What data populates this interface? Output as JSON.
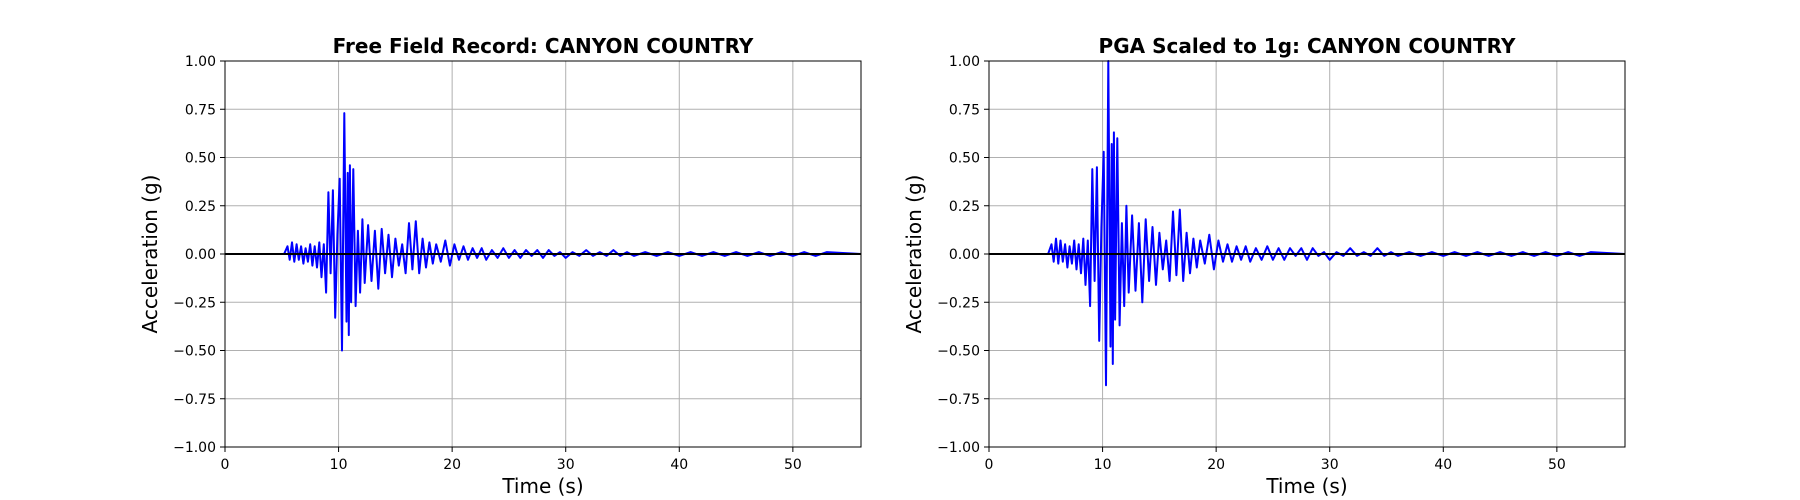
{
  "chart_data": [
    {
      "type": "line",
      "title": "Free Field Record: CANYON COUNTRY",
      "xlabel": "Time (s)",
      "ylabel": "Acceleration (g)",
      "xlim": [
        0,
        56
      ],
      "ylim": [
        -1.0,
        1.0
      ],
      "xticks": [
        "0",
        "10",
        "20",
        "30",
        "40",
        "50"
      ],
      "yticks": [
        "1.00",
        "0.75",
        "0.50",
        "0.25",
        "0.00",
        "−0.25",
        "−0.50",
        "−0.75",
        "−1.00"
      ],
      "grid": true,
      "series": [
        {
          "color": "#0000ff",
          "x": [
            0,
            5.2,
            5.5,
            5.7,
            5.9,
            6.1,
            6.3,
            6.5,
            6.7,
            6.9,
            7.1,
            7.3,
            7.5,
            7.7,
            7.9,
            8.1,
            8.3,
            8.5,
            8.7,
            8.9,
            9.1,
            9.3,
            9.5,
            9.7,
            9.9,
            10.1,
            10.3,
            10.5,
            10.7,
            10.8,
            10.9,
            11.0,
            11.1,
            11.3,
            11.5,
            11.7,
            11.9,
            12.1,
            12.3,
            12.6,
            12.9,
            13.2,
            13.5,
            13.8,
            14.1,
            14.4,
            14.7,
            15.0,
            15.3,
            15.6,
            15.9,
            16.2,
            16.5,
            16.8,
            17.1,
            17.4,
            17.7,
            18.0,
            18.3,
            18.6,
            19.0,
            19.4,
            19.8,
            20.2,
            20.6,
            21.0,
            21.4,
            21.8,
            22.2,
            22.6,
            23.0,
            23.5,
            24.0,
            24.5,
            25.0,
            25.5,
            26.0,
            26.5,
            27.0,
            27.5,
            28.0,
            28.5,
            29.0,
            29.5,
            30.0,
            30.6,
            31.2,
            31.8,
            32.4,
            33.0,
            33.6,
            34.2,
            34.8,
            35.4,
            36.0,
            37.0,
            38.0,
            39.0,
            40.0,
            41.0,
            42.0,
            43.0,
            44.0,
            45.0,
            46.0,
            47.0,
            48.0,
            49.0,
            50.0,
            51.0,
            52.0,
            53.0,
            56.0
          ],
          "y": [
            0,
            0,
            0.04,
            -0.03,
            0.06,
            -0.04,
            0.05,
            -0.03,
            0.04,
            -0.05,
            0.03,
            -0.04,
            0.05,
            -0.06,
            0.04,
            -0.07,
            0.06,
            -0.12,
            0.05,
            -0.2,
            0.32,
            -0.1,
            0.33,
            -0.33,
            0.1,
            0.39,
            -0.5,
            0.73,
            -0.35,
            0.42,
            -0.42,
            0.46,
            -0.25,
            0.44,
            -0.27,
            0.12,
            -0.2,
            0.18,
            -0.15,
            0.15,
            -0.14,
            0.12,
            -0.18,
            0.13,
            -0.1,
            0.1,
            -0.12,
            0.08,
            -0.06,
            0.05,
            -0.1,
            0.16,
            -0.08,
            0.17,
            -0.1,
            0.08,
            -0.07,
            0.06,
            -0.05,
            0.05,
            -0.04,
            0.07,
            -0.06,
            0.05,
            -0.03,
            0.04,
            -0.03,
            0.03,
            -0.02,
            0.03,
            -0.03,
            0.02,
            -0.02,
            0.03,
            -0.02,
            0.02,
            -0.02,
            0.02,
            -0.01,
            0.02,
            -0.02,
            0.02,
            -0.01,
            0.01,
            -0.02,
            0.01,
            -0.01,
            0.02,
            -0.01,
            0.01,
            -0.01,
            0.02,
            -0.01,
            0.01,
            -0.01,
            0.01,
            -0.01,
            0.01,
            -0.01,
            0.01,
            -0.01,
            0.01,
            -0.01,
            0.01,
            -0.01,
            0.01,
            -0.01,
            0.01,
            -0.01,
            0.01,
            -0.01,
            0.01,
            0
          ]
        }
      ]
    },
    {
      "type": "line",
      "title": "PGA Scaled to 1g: CANYON COUNTRY",
      "xlabel": "Time (s)",
      "ylabel": "Acceleration (g)",
      "xlim": [
        0,
        56
      ],
      "ylim": [
        -1.0,
        1.0
      ],
      "xticks": [
        "0",
        "10",
        "20",
        "30",
        "40",
        "50"
      ],
      "yticks": [
        "1.00",
        "0.75",
        "0.50",
        "0.25",
        "0.00",
        "−0.25",
        "−0.50",
        "−0.75",
        "−1.00"
      ],
      "grid": true,
      "series": [
        {
          "color": "#0000ff",
          "x": [
            0,
            5.2,
            5.5,
            5.7,
            5.9,
            6.1,
            6.3,
            6.5,
            6.7,
            6.9,
            7.1,
            7.3,
            7.5,
            7.7,
            7.9,
            8.1,
            8.3,
            8.5,
            8.7,
            8.9,
            9.1,
            9.3,
            9.5,
            9.7,
            9.9,
            10.1,
            10.3,
            10.5,
            10.7,
            10.8,
            10.9,
            11.0,
            11.1,
            11.3,
            11.5,
            11.7,
            11.9,
            12.1,
            12.3,
            12.6,
            12.9,
            13.2,
            13.5,
            13.8,
            14.1,
            14.4,
            14.7,
            15.0,
            15.3,
            15.6,
            15.9,
            16.2,
            16.5,
            16.8,
            17.1,
            17.4,
            17.7,
            18.0,
            18.3,
            18.6,
            19.0,
            19.4,
            19.8,
            20.2,
            20.6,
            21.0,
            21.4,
            21.8,
            22.2,
            22.6,
            23.0,
            23.5,
            24.0,
            24.5,
            25.0,
            25.5,
            26.0,
            26.5,
            27.0,
            27.5,
            28.0,
            28.5,
            29.0,
            29.5,
            30.0,
            30.6,
            31.2,
            31.8,
            32.4,
            33.0,
            33.6,
            34.2,
            34.8,
            35.4,
            36.0,
            37.0,
            38.0,
            39.0,
            40.0,
            41.0,
            42.0,
            43.0,
            44.0,
            45.0,
            46.0,
            47.0,
            48.0,
            49.0,
            50.0,
            51.0,
            52.0,
            53.0,
            56.0
          ],
          "y": [
            0,
            0,
            0.05,
            -0.04,
            0.08,
            -0.05,
            0.07,
            -0.04,
            0.05,
            -0.07,
            0.04,
            -0.05,
            0.07,
            -0.08,
            0.05,
            -0.1,
            0.08,
            -0.16,
            0.07,
            -0.27,
            0.44,
            -0.14,
            0.45,
            -0.45,
            0.14,
            0.53,
            -0.68,
            1.0,
            -0.48,
            0.57,
            -0.57,
            0.63,
            -0.34,
            0.6,
            -0.37,
            0.16,
            -0.27,
            0.25,
            -0.2,
            0.2,
            -0.19,
            0.16,
            -0.25,
            0.18,
            -0.14,
            0.14,
            -0.16,
            0.11,
            -0.08,
            0.07,
            -0.14,
            0.22,
            -0.11,
            0.23,
            -0.14,
            0.11,
            -0.1,
            0.08,
            -0.07,
            0.07,
            -0.05,
            0.1,
            -0.08,
            0.07,
            -0.04,
            0.05,
            -0.04,
            0.04,
            -0.03,
            0.04,
            -0.04,
            0.03,
            -0.03,
            0.04,
            -0.03,
            0.03,
            -0.03,
            0.03,
            -0.01,
            0.03,
            -0.03,
            0.03,
            -0.01,
            0.01,
            -0.03,
            0.01,
            -0.01,
            0.03,
            -0.01,
            0.01,
            -0.01,
            0.03,
            -0.01,
            0.01,
            -0.01,
            0.01,
            -0.01,
            0.01,
            -0.01,
            0.01,
            -0.01,
            0.01,
            -0.01,
            0.01,
            -0.01,
            0.01,
            -0.01,
            0.01,
            -0.01,
            0.01,
            -0.01,
            0.01,
            0
          ]
        }
      ]
    }
  ]
}
